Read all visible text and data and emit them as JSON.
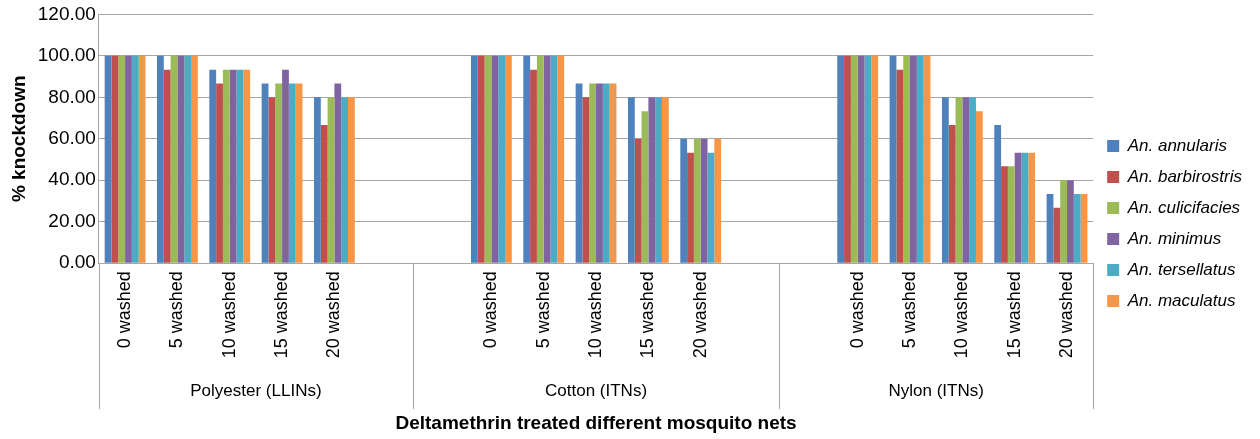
{
  "chart_data": {
    "type": "bar",
    "xlabel": "Deltamethrin treated different mosquito nets",
    "ylabel": "% knockdown",
    "categories": [
      "0 washed",
      "5 washed",
      "10 washed",
      "15 washed",
      "20 washed",
      null,
      null,
      "0 washed",
      "5 washed",
      "10 washed",
      "15 washed",
      "20 washed",
      null,
      null,
      "0 washed",
      "5 washed",
      "10 washed",
      "15 washed",
      "20 washed"
    ],
    "series": [
      {
        "name": "An. annularis",
        "color": "#4f81bd",
        "values": [
          100,
          100,
          93.3,
          86.7,
          80,
          null,
          null,
          100,
          100,
          86.7,
          80,
          60,
          null,
          null,
          100,
          100,
          80,
          66.7,
          33.3
        ]
      },
      {
        "name": "An. barbirostris",
        "color": "#c0504d",
        "values": [
          100,
          93.3,
          86.7,
          80,
          66.7,
          null,
          null,
          100,
          93.3,
          80,
          60,
          53.3,
          null,
          null,
          100,
          93.3,
          66.7,
          46.7,
          26.7
        ]
      },
      {
        "name": "An. culicifacies",
        "color": "#9bbb59",
        "values": [
          100,
          100,
          93.3,
          86.7,
          80,
          null,
          null,
          100,
          100,
          86.7,
          73.3,
          60,
          null,
          null,
          100,
          100,
          80,
          46.7,
          40
        ]
      },
      {
        "name": "An. minimus",
        "color": "#8064a2",
        "values": [
          100,
          100,
          93.3,
          93.3,
          86.7,
          null,
          null,
          100,
          100,
          86.7,
          80,
          60,
          null,
          null,
          100,
          100,
          80,
          53.3,
          40
        ]
      },
      {
        "name": "An. tersellatus",
        "color": "#4bacc6",
        "values": [
          100,
          100,
          93.3,
          86.7,
          80,
          null,
          null,
          100,
          100,
          86.7,
          80,
          53.3,
          null,
          null,
          100,
          100,
          80,
          53.3,
          33.3
        ]
      },
      {
        "name": "An. maculatus",
        "color": "#f79646",
        "values": [
          100,
          100,
          93.3,
          86.7,
          80,
          null,
          null,
          100,
          100,
          86.7,
          80,
          60,
          null,
          null,
          100,
          100,
          73.3,
          53.3,
          33.3
        ]
      }
    ],
    "annotations": [
      "Polyester (LLINs)",
      "Cotton (ITNs)",
      "Nylon (ITNs)"
    ],
    "ylim": [
      0,
      120
    ],
    "yticks": [
      {
        "value": 0,
        "label": "0.00"
      },
      {
        "value": 20,
        "label": "20.00"
      },
      {
        "value": 40,
        "label": "40.00"
      },
      {
        "value": 60,
        "label": "60.00"
      },
      {
        "value": 80,
        "label": "80.00"
      },
      {
        "value": 100,
        "label": "100.00"
      },
      {
        "value": 120,
        "label": "120.00"
      }
    ],
    "grid": "y",
    "legend": "right"
  }
}
